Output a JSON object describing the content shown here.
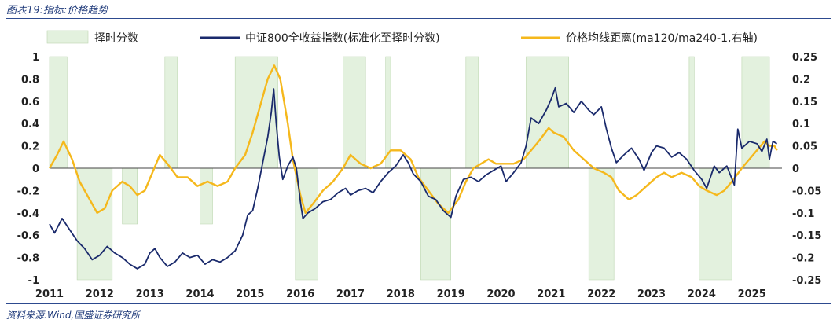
{
  "figure_title": "图表19:指标:价格趋势",
  "source_note": "资料来源:Wind,国盛证券研究所",
  "colors": {
    "timing": "#e3f1de",
    "timing_edge": "#bcd6b0",
    "index": "#1a2a6c",
    "premium": "#f5b81c"
  },
  "chart_data": {
    "type": "line",
    "legend_position": "top",
    "grid": false,
    "x_ticks": [
      "2011",
      "2012",
      "2013",
      "2014",
      "2015",
      "2016",
      "2017",
      "2018",
      "2019",
      "2020",
      "2021",
      "2022",
      "2023",
      "2024",
      "2025"
    ],
    "x_range": [
      2011.0,
      2025.6
    ],
    "y_left": {
      "range": [
        -1,
        1
      ],
      "ticks": [
        "1",
        "0.8",
        "0.6",
        "0.4",
        "0.2",
        "0",
        "-0.2",
        "-0.4",
        "-0.6",
        "-0.8",
        "-1"
      ]
    },
    "y_right": {
      "range": [
        -0.25,
        0.25
      ],
      "ticks": [
        "0.25",
        "0.2",
        "0.15",
        "0.1",
        "0.05",
        "0",
        "-0.05",
        "-0.1",
        "-0.15",
        "-0.2",
        "-0.25"
      ]
    },
    "series": [
      {
        "name": "择时分数",
        "kind": "area",
        "axis": "left",
        "points": [
          [
            2011.0,
            1
          ],
          [
            2011.35,
            1
          ],
          [
            2011.35,
            0
          ],
          [
            2011.55,
            0
          ],
          [
            2011.55,
            -1
          ],
          [
            2012.25,
            -1
          ],
          [
            2012.25,
            0
          ],
          [
            2012.45,
            0
          ],
          [
            2012.45,
            -0.5
          ],
          [
            2012.75,
            -0.5
          ],
          [
            2012.75,
            0
          ],
          [
            2013.3,
            0
          ],
          [
            2013.3,
            1
          ],
          [
            2013.55,
            1
          ],
          [
            2013.55,
            0
          ],
          [
            2014.0,
            0
          ],
          [
            2014.0,
            -0.5
          ],
          [
            2014.25,
            -0.5
          ],
          [
            2014.25,
            0
          ],
          [
            2014.7,
            0
          ],
          [
            2014.7,
            1
          ],
          [
            2015.55,
            1
          ],
          [
            2015.55,
            0
          ],
          [
            2015.9,
            0
          ],
          [
            2015.9,
            -1
          ],
          [
            2016.35,
            -1
          ],
          [
            2016.35,
            0
          ],
          [
            2016.85,
            0
          ],
          [
            2016.85,
            1
          ],
          [
            2017.3,
            1
          ],
          [
            2017.3,
            0
          ],
          [
            2017.7,
            0
          ],
          [
            2017.7,
            1
          ],
          [
            2017.8,
            1
          ],
          [
            2017.8,
            0
          ],
          [
            2018.4,
            0
          ],
          [
            2018.4,
            -1
          ],
          [
            2019.0,
            -1
          ],
          [
            2019.0,
            0
          ],
          [
            2019.3,
            0
          ],
          [
            2019.3,
            1
          ],
          [
            2019.55,
            1
          ],
          [
            2019.55,
            0
          ],
          [
            2020.5,
            0
          ],
          [
            2020.5,
            1
          ],
          [
            2021.35,
            1
          ],
          [
            2021.35,
            0
          ],
          [
            2021.75,
            0
          ],
          [
            2021.75,
            -1
          ],
          [
            2022.25,
            -1
          ],
          [
            2022.25,
            0
          ],
          [
            2023.75,
            0
          ],
          [
            2023.75,
            1
          ],
          [
            2023.85,
            1
          ],
          [
            2023.85,
            0
          ],
          [
            2023.95,
            0
          ],
          [
            2023.95,
            -1
          ],
          [
            2024.6,
            -1
          ],
          [
            2024.6,
            0
          ],
          [
            2024.8,
            0
          ],
          [
            2024.8,
            1
          ],
          [
            2025.35,
            1
          ],
          [
            2025.35,
            0
          ],
          [
            2025.45,
            0
          ]
        ]
      },
      {
        "name": "中证800全收益指数(标准化至择时分数)",
        "kind": "line",
        "axis": "left",
        "points": [
          [
            2011.0,
            -0.5
          ],
          [
            2011.1,
            -0.58
          ],
          [
            2011.25,
            -0.45
          ],
          [
            2011.4,
            -0.55
          ],
          [
            2011.55,
            -0.65
          ],
          [
            2011.7,
            -0.72
          ],
          [
            2011.85,
            -0.82
          ],
          [
            2012.0,
            -0.78
          ],
          [
            2012.15,
            -0.7
          ],
          [
            2012.3,
            -0.76
          ],
          [
            2012.45,
            -0.8
          ],
          [
            2012.6,
            -0.86
          ],
          [
            2012.75,
            -0.9
          ],
          [
            2012.9,
            -0.86
          ],
          [
            2013.0,
            -0.76
          ],
          [
            2013.1,
            -0.72
          ],
          [
            2013.2,
            -0.8
          ],
          [
            2013.35,
            -0.88
          ],
          [
            2013.5,
            -0.84
          ],
          [
            2013.65,
            -0.76
          ],
          [
            2013.8,
            -0.8
          ],
          [
            2013.95,
            -0.78
          ],
          [
            2014.1,
            -0.86
          ],
          [
            2014.25,
            -0.82
          ],
          [
            2014.4,
            -0.84
          ],
          [
            2014.55,
            -0.8
          ],
          [
            2014.7,
            -0.74
          ],
          [
            2014.85,
            -0.6
          ],
          [
            2014.95,
            -0.42
          ],
          [
            2015.05,
            -0.38
          ],
          [
            2015.15,
            -0.18
          ],
          [
            2015.25,
            0.05
          ],
          [
            2015.35,
            0.28
          ],
          [
            2015.42,
            0.5
          ],
          [
            2015.47,
            0.71
          ],
          [
            2015.52,
            0.4
          ],
          [
            2015.58,
            0.1
          ],
          [
            2015.65,
            -0.1
          ],
          [
            2015.75,
            0.02
          ],
          [
            2015.85,
            0.1
          ],
          [
            2015.92,
            0.0
          ],
          [
            2016.0,
            -0.3
          ],
          [
            2016.05,
            -0.45
          ],
          [
            2016.15,
            -0.4
          ],
          [
            2016.3,
            -0.36
          ],
          [
            2016.45,
            -0.3
          ],
          [
            2016.6,
            -0.28
          ],
          [
            2016.75,
            -0.22
          ],
          [
            2016.9,
            -0.18
          ],
          [
            2017.0,
            -0.24
          ],
          [
            2017.15,
            -0.2
          ],
          [
            2017.3,
            -0.18
          ],
          [
            2017.45,
            -0.22
          ],
          [
            2017.6,
            -0.12
          ],
          [
            2017.75,
            -0.04
          ],
          [
            2017.9,
            0.02
          ],
          [
            2018.05,
            0.12
          ],
          [
            2018.15,
            0.05
          ],
          [
            2018.25,
            -0.05
          ],
          [
            2018.4,
            -0.12
          ],
          [
            2018.55,
            -0.25
          ],
          [
            2018.7,
            -0.28
          ],
          [
            2018.85,
            -0.38
          ],
          [
            2019.0,
            -0.44
          ],
          [
            2019.1,
            -0.25
          ],
          [
            2019.25,
            -0.1
          ],
          [
            2019.4,
            -0.08
          ],
          [
            2019.55,
            -0.12
          ],
          [
            2019.7,
            -0.06
          ],
          [
            2019.85,
            -0.02
          ],
          [
            2020.0,
            0.02
          ],
          [
            2020.1,
            -0.12
          ],
          [
            2020.25,
            -0.04
          ],
          [
            2020.4,
            0.05
          ],
          [
            2020.5,
            0.2
          ],
          [
            2020.6,
            0.45
          ],
          [
            2020.75,
            0.4
          ],
          [
            2020.9,
            0.52
          ],
          [
            2021.0,
            0.62
          ],
          [
            2021.08,
            0.72
          ],
          [
            2021.15,
            0.55
          ],
          [
            2021.3,
            0.58
          ],
          [
            2021.45,
            0.5
          ],
          [
            2021.6,
            0.6
          ],
          [
            2021.75,
            0.52
          ],
          [
            2021.85,
            0.48
          ],
          [
            2022.0,
            0.55
          ],
          [
            2022.1,
            0.35
          ],
          [
            2022.2,
            0.18
          ],
          [
            2022.3,
            0.05
          ],
          [
            2022.45,
            0.12
          ],
          [
            2022.6,
            0.18
          ],
          [
            2022.75,
            0.08
          ],
          [
            2022.85,
            -0.02
          ],
          [
            2023.0,
            0.14
          ],
          [
            2023.1,
            0.2
          ],
          [
            2023.25,
            0.18
          ],
          [
            2023.4,
            0.1
          ],
          [
            2023.55,
            0.14
          ],
          [
            2023.7,
            0.08
          ],
          [
            2023.85,
            -0.02
          ],
          [
            2024.0,
            -0.1
          ],
          [
            2024.1,
            -0.18
          ],
          [
            2024.25,
            0.02
          ],
          [
            2024.35,
            -0.04
          ],
          [
            2024.5,
            0.02
          ],
          [
            2024.65,
            -0.15
          ],
          [
            2024.72,
            0.35
          ],
          [
            2024.8,
            0.18
          ],
          [
            2024.95,
            0.24
          ],
          [
            2025.1,
            0.22
          ],
          [
            2025.2,
            0.15
          ],
          [
            2025.3,
            0.26
          ],
          [
            2025.35,
            0.08
          ],
          [
            2025.42,
            0.24
          ],
          [
            2025.5,
            0.22
          ]
        ]
      },
      {
        "name": "价格均线距离(ma120/ma240-1,右轴)",
        "kind": "line",
        "axis": "right",
        "points": [
          [
            2011.0,
            0.0
          ],
          [
            2011.15,
            0.03
          ],
          [
            2011.28,
            0.06
          ],
          [
            2011.45,
            0.02
          ],
          [
            2011.6,
            -0.03
          ],
          [
            2011.8,
            -0.07
          ],
          [
            2011.95,
            -0.1
          ],
          [
            2012.1,
            -0.09
          ],
          [
            2012.25,
            -0.05
          ],
          [
            2012.45,
            -0.03
          ],
          [
            2012.6,
            -0.04
          ],
          [
            2012.75,
            -0.06
          ],
          [
            2012.9,
            -0.05
          ],
          [
            2013.05,
            -0.01
          ],
          [
            2013.2,
            0.03
          ],
          [
            2013.35,
            0.01
          ],
          [
            2013.55,
            -0.02
          ],
          [
            2013.75,
            -0.02
          ],
          [
            2013.95,
            -0.04
          ],
          [
            2014.15,
            -0.03
          ],
          [
            2014.35,
            -0.04
          ],
          [
            2014.55,
            -0.03
          ],
          [
            2014.7,
            0.0
          ],
          [
            2014.9,
            0.03
          ],
          [
            2015.05,
            0.08
          ],
          [
            2015.2,
            0.14
          ],
          [
            2015.35,
            0.2
          ],
          [
            2015.48,
            0.23
          ],
          [
            2015.6,
            0.2
          ],
          [
            2015.75,
            0.1
          ],
          [
            2015.85,
            0.02
          ],
          [
            2016.0,
            -0.06
          ],
          [
            2016.1,
            -0.1
          ],
          [
            2016.25,
            -0.08
          ],
          [
            2016.45,
            -0.05
          ],
          [
            2016.65,
            -0.03
          ],
          [
            2016.85,
            0.0
          ],
          [
            2017.0,
            0.03
          ],
          [
            2017.2,
            0.01
          ],
          [
            2017.4,
            0.0
          ],
          [
            2017.6,
            0.01
          ],
          [
            2017.8,
            0.04
          ],
          [
            2018.0,
            0.04
          ],
          [
            2018.2,
            0.02
          ],
          [
            2018.35,
            -0.02
          ],
          [
            2018.55,
            -0.05
          ],
          [
            2018.75,
            -0.08
          ],
          [
            2018.95,
            -0.1
          ],
          [
            2019.15,
            -0.07
          ],
          [
            2019.3,
            -0.03
          ],
          [
            2019.45,
            0.0
          ],
          [
            2019.6,
            0.01
          ],
          [
            2019.75,
            0.02
          ],
          [
            2019.9,
            0.01
          ],
          [
            2020.05,
            0.01
          ],
          [
            2020.25,
            0.01
          ],
          [
            2020.45,
            0.02
          ],
          [
            2020.6,
            0.04
          ],
          [
            2020.75,
            0.06
          ],
          [
            2020.95,
            0.09
          ],
          [
            2021.05,
            0.08
          ],
          [
            2021.25,
            0.07
          ],
          [
            2021.45,
            0.04
          ],
          [
            2021.65,
            0.02
          ],
          [
            2021.85,
            0.0
          ],
          [
            2022.05,
            -0.01
          ],
          [
            2022.2,
            -0.02
          ],
          [
            2022.35,
            -0.05
          ],
          [
            2022.55,
            -0.07
          ],
          [
            2022.7,
            -0.06
          ],
          [
            2022.9,
            -0.04
          ],
          [
            2023.1,
            -0.02
          ],
          [
            2023.25,
            -0.01
          ],
          [
            2023.4,
            -0.02
          ],
          [
            2023.6,
            -0.01
          ],
          [
            2023.8,
            -0.02
          ],
          [
            2023.95,
            -0.04
          ],
          [
            2024.1,
            -0.05
          ],
          [
            2024.3,
            -0.06
          ],
          [
            2024.45,
            -0.05
          ],
          [
            2024.6,
            -0.03
          ],
          [
            2024.8,
            0.0
          ],
          [
            2024.95,
            0.02
          ],
          [
            2025.1,
            0.04
          ],
          [
            2025.25,
            0.06
          ],
          [
            2025.35,
            0.05
          ],
          [
            2025.45,
            0.05
          ],
          [
            2025.5,
            0.04
          ]
        ]
      }
    ]
  }
}
